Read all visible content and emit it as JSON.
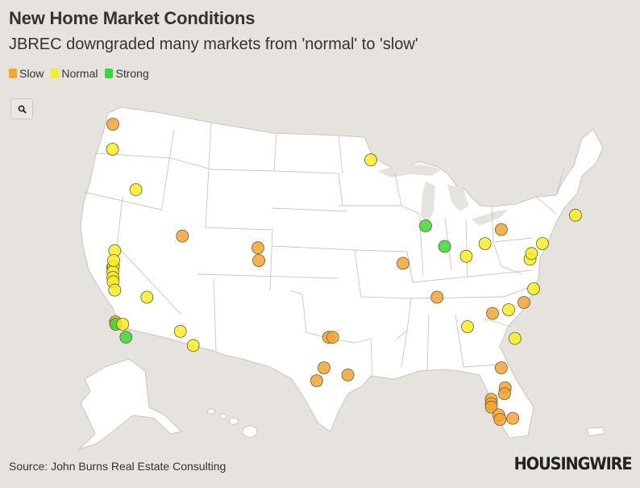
{
  "header": {
    "title": "New Home Market Conditions",
    "subtitle": "JBREC downgraded many markets from 'normal' to 'slow'"
  },
  "legend": [
    {
      "key": "slow",
      "label": "Slow",
      "color": "#f5a430"
    },
    {
      "key": "normal",
      "label": "Normal",
      "color": "#f4ef22"
    },
    {
      "key": "strong",
      "label": "Strong",
      "color": "#3ad934"
    }
  ],
  "zoom": {
    "icon": "search-icon"
  },
  "footer": {
    "source": "Source: John Burns Real Estate Consulting",
    "logo": "HOUSINGWIRE"
  },
  "map_data": {
    "basemap": "usa-states",
    "markets": [
      {
        "lat": 47.6,
        "lon": -122.3,
        "status": "slow"
      },
      {
        "lat": 45.5,
        "lon": -122.7,
        "status": "normal"
      },
      {
        "lat": 43.6,
        "lon": -116.2,
        "status": "normal"
      },
      {
        "lat": 39.5,
        "lon": -119.8,
        "status": "normal"
      },
      {
        "lat": 38.3,
        "lon": -122.6,
        "status": "slow"
      },
      {
        "lat": 38.4,
        "lon": -121.4,
        "status": "normal"
      },
      {
        "lat": 38.0,
        "lon": -122.3,
        "status": "normal"
      },
      {
        "lat": 38.8,
        "lon": -121.2,
        "status": "normal"
      },
      {
        "lat": 37.6,
        "lon": -122.2,
        "status": "normal"
      },
      {
        "lat": 37.3,
        "lon": -121.9,
        "status": "normal"
      },
      {
        "lat": 36.7,
        "lon": -119.8,
        "status": "normal"
      },
      {
        "lat": 36.2,
        "lon": -115.2,
        "status": "normal"
      },
      {
        "lat": 34.2,
        "lon": -118.7,
        "status": "slow"
      },
      {
        "lat": 34.0,
        "lon": -118.4,
        "status": "strong"
      },
      {
        "lat": 34.0,
        "lon": -117.4,
        "status": "normal"
      },
      {
        "lat": 32.9,
        "lon": -117.1,
        "status": "strong"
      },
      {
        "lat": 33.4,
        "lon": -112.1,
        "status": "normal"
      },
      {
        "lat": 32.2,
        "lon": -110.9,
        "status": "normal"
      },
      {
        "lat": 40.8,
        "lon": -111.9,
        "status": "slow"
      },
      {
        "lat": 39.7,
        "lon": -104.9,
        "status": "slow"
      },
      {
        "lat": 38.8,
        "lon": -104.8,
        "status": "slow"
      },
      {
        "lat": 32.9,
        "lon": -97.2,
        "status": "slow"
      },
      {
        "lat": 32.9,
        "lon": -96.8,
        "status": "slow"
      },
      {
        "lat": 30.3,
        "lon": -97.7,
        "status": "slow"
      },
      {
        "lat": 29.4,
        "lon": -98.5,
        "status": "slow"
      },
      {
        "lat": 29.8,
        "lon": -95.4,
        "status": "slow"
      },
      {
        "lat": 45.0,
        "lon": -93.3,
        "status": "normal"
      },
      {
        "lat": 41.9,
        "lon": -87.7,
        "status": "strong"
      },
      {
        "lat": 39.8,
        "lon": -86.2,
        "status": "strong"
      },
      {
        "lat": 38.6,
        "lon": -90.2,
        "status": "slow"
      },
      {
        "lat": 36.2,
        "lon": -86.8,
        "status": "slow"
      },
      {
        "lat": 41.5,
        "lon": -81.7,
        "status": "slow"
      },
      {
        "lat": 40.0,
        "lon": -83.0,
        "status": "normal"
      },
      {
        "lat": 39.1,
        "lon": -84.5,
        "status": "normal"
      },
      {
        "lat": 33.8,
        "lon": -84.4,
        "status": "normal"
      },
      {
        "lat": 35.2,
        "lon": -80.8,
        "status": "normal"
      },
      {
        "lat": 34.9,
        "lon": -82.4,
        "status": "slow"
      },
      {
        "lat": 35.8,
        "lon": -78.6,
        "status": "slow"
      },
      {
        "lat": 32.8,
        "lon": -79.9,
        "status": "normal"
      },
      {
        "lat": 36.8,
        "lon": -76.3,
        "status": "normal"
      },
      {
        "lat": 38.9,
        "lon": -77.0,
        "status": "normal"
      },
      {
        "lat": 39.3,
        "lon": -76.6,
        "status": "normal"
      },
      {
        "lat": 40.0,
        "lon": -75.2,
        "status": "normal"
      },
      {
        "lat": 42.4,
        "lon": -71.1,
        "status": "normal"
      },
      {
        "lat": 30.3,
        "lon": -81.7,
        "status": "slow"
      },
      {
        "lat": 28.9,
        "lon": -81.3,
        "status": "slow"
      },
      {
        "lat": 28.5,
        "lon": -81.4,
        "status": "slow"
      },
      {
        "lat": 28.0,
        "lon": -82.5,
        "status": "slow"
      },
      {
        "lat": 27.6,
        "lon": -82.5,
        "status": "slow"
      },
      {
        "lat": 27.3,
        "lon": -82.5,
        "status": "slow"
      },
      {
        "lat": 26.6,
        "lon": -81.9,
        "status": "slow"
      },
      {
        "lat": 26.2,
        "lon": -81.8,
        "status": "slow"
      },
      {
        "lat": 26.3,
        "lon": -80.2,
        "status": "slow"
      }
    ]
  }
}
